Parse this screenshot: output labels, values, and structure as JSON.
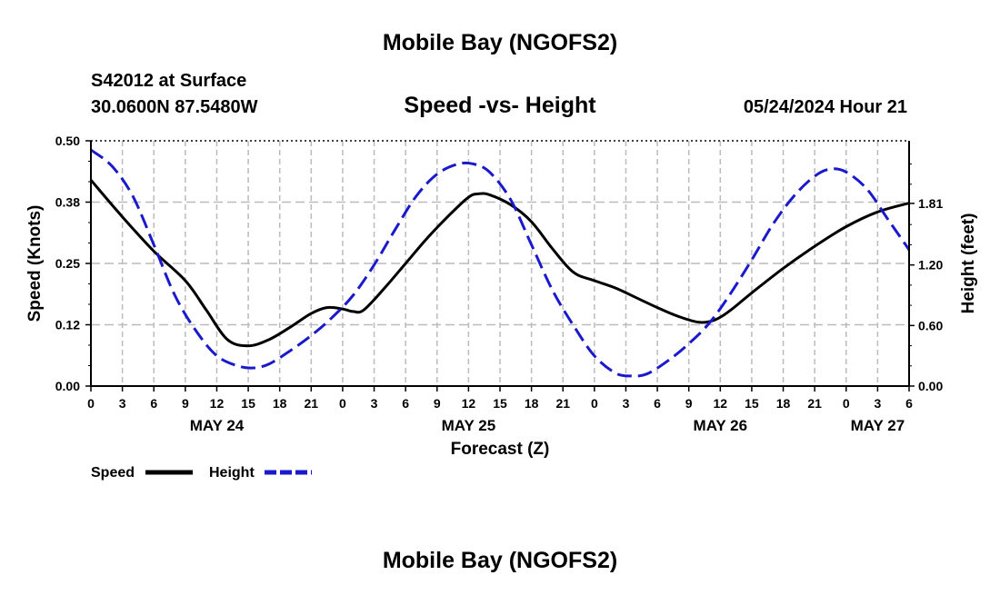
{
  "header": {
    "title": "Mobile Bay (NGOFS2)",
    "station": "S42012 at Surface",
    "coords": "30.0600N  87.5480W",
    "chart_title": "Speed -vs- Height",
    "timestamp": "05/24/2024 Hour 21"
  },
  "footer": {
    "title": "Mobile Bay (NGOFS2)"
  },
  "legend": {
    "speed_label": "Speed",
    "height_label": "Height"
  },
  "colors": {
    "speed": "#000000",
    "height": "#1a1acc",
    "grid": "#bbbbbb"
  },
  "chart_data": {
    "type": "line",
    "title": "Speed -vs- Height",
    "xlabel": "Forecast (Z)",
    "ylabel": "Speed (Knots)",
    "y2label": "Height (feet)",
    "x_unit": "hours since 2024-05-24 00Z",
    "xlim": [
      0,
      78
    ],
    "ylim": [
      0,
      0.5
    ],
    "y2lim": [
      0,
      2.43
    ],
    "grid": true,
    "legend_position": "bottom-left",
    "x_tick_hours": [
      0,
      3,
      6,
      9,
      12,
      15,
      18,
      21,
      24,
      27,
      30,
      33,
      36,
      39,
      42,
      45,
      48,
      51,
      54,
      57,
      60,
      63,
      66,
      69,
      72,
      75,
      78
    ],
    "x_tick_labels": [
      "0",
      "3",
      "6",
      "9",
      "12",
      "15",
      "18",
      "21",
      "0",
      "3",
      "6",
      "9",
      "12",
      "15",
      "18",
      "21",
      "0",
      "3",
      "6",
      "9",
      "12",
      "15",
      "18",
      "21",
      "0",
      "3",
      "6"
    ],
    "date_labels": [
      {
        "hour": 12,
        "label": "MAY 24"
      },
      {
        "hour": 36,
        "label": "MAY 25"
      },
      {
        "hour": 60,
        "label": "MAY 26"
      },
      {
        "hour": 75,
        "label": "MAY 27"
      }
    ],
    "y_ticks": [
      0.0,
      0.125,
      0.25,
      0.375,
      0.5
    ],
    "y_tick_labels": [
      "0.00",
      "0.12",
      "0.25",
      "0.38",
      "0.50"
    ],
    "y2_ticks": [
      0.0,
      0.6,
      1.2,
      1.81
    ],
    "y2_tick_labels": [
      "0.00",
      "0.60",
      "1.20",
      "1.81"
    ],
    "series": [
      {
        "name": "Speed",
        "axis": "left",
        "style": "solid",
        "x": [
          0,
          3,
          6,
          9,
          11,
          13,
          15,
          17,
          19,
          21,
          22.5,
          24,
          25,
          26,
          28,
          30,
          32,
          34,
          36,
          37,
          38,
          40,
          42,
          44,
          46,
          48,
          50,
          52,
          54,
          56,
          58,
          59.5,
          61,
          63,
          66,
          69,
          72,
          75,
          78
        ],
        "values": [
          0.42,
          0.345,
          0.275,
          0.215,
          0.155,
          0.095,
          0.082,
          0.095,
          0.12,
          0.148,
          0.16,
          0.157,
          0.152,
          0.155,
          0.2,
          0.25,
          0.3,
          0.345,
          0.385,
          0.392,
          0.39,
          0.37,
          0.335,
          0.28,
          0.232,
          0.215,
          0.2,
          0.18,
          0.16,
          0.142,
          0.13,
          0.135,
          0.155,
          0.19,
          0.24,
          0.285,
          0.325,
          0.355,
          0.373
        ]
      },
      {
        "name": "Height",
        "axis": "right",
        "style": "dashed",
        "x": [
          0,
          2,
          4,
          6,
          8,
          10,
          12,
          14,
          15.5,
          17,
          19,
          21,
          23,
          25,
          27,
          29,
          31,
          33,
          35,
          36.5,
          38,
          40,
          42,
          44,
          46,
          48,
          50,
          51.5,
          53,
          55,
          57,
          59,
          61,
          63,
          65,
          67,
          69,
          70.5,
          72,
          74,
          76,
          78
        ],
        "values": [
          2.34,
          2.18,
          1.88,
          1.4,
          0.9,
          0.55,
          0.3,
          0.2,
          0.18,
          0.22,
          0.35,
          0.5,
          0.68,
          0.9,
          1.2,
          1.55,
          1.88,
          2.1,
          2.2,
          2.2,
          2.12,
          1.85,
          1.4,
          0.95,
          0.6,
          0.3,
          0.13,
          0.1,
          0.12,
          0.25,
          0.42,
          0.63,
          0.92,
          1.25,
          1.6,
          1.88,
          2.08,
          2.15,
          2.12,
          1.95,
          1.65,
          1.35
        ]
      }
    ]
  }
}
